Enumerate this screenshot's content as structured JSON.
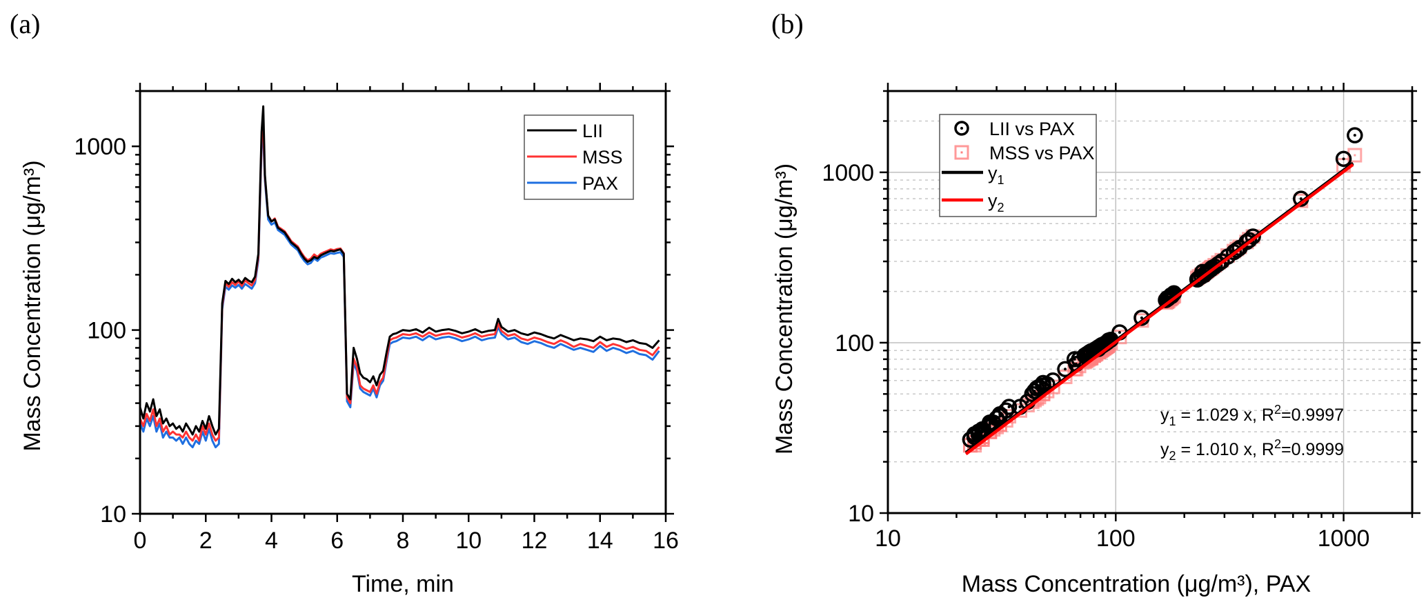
{
  "panels": {
    "a": {
      "label": "(a)"
    },
    "b": {
      "label": "(b)"
    }
  },
  "chart_data": [
    {
      "id": "a",
      "type": "line",
      "title": "",
      "xlabel": "Time, min",
      "ylabel": "Mass Concentration (μg/m³)",
      "xscale": "linear",
      "yscale": "log",
      "xlim": [
        0,
        16
      ],
      "ylim": [
        10,
        2000
      ],
      "xticks": [
        0,
        2,
        4,
        6,
        8,
        10,
        12,
        14,
        16
      ],
      "xtick_labels": [
        "0",
        "2",
        "4",
        "6",
        "8",
        "10",
        "12",
        "14",
        "16"
      ],
      "yticks": [
        10,
        100,
        1000
      ],
      "ytick_labels": [
        "10",
        "100",
        "1000"
      ],
      "grid": false,
      "legend_position": "top-right",
      "x": [
        0.0,
        0.1,
        0.2,
        0.3,
        0.4,
        0.5,
        0.6,
        0.7,
        0.8,
        0.9,
        1.0,
        1.1,
        1.2,
        1.3,
        1.4,
        1.5,
        1.6,
        1.7,
        1.8,
        1.9,
        2.0,
        2.1,
        2.2,
        2.3,
        2.4,
        2.5,
        2.6,
        2.7,
        2.8,
        2.9,
        3.0,
        3.1,
        3.2,
        3.3,
        3.4,
        3.5,
        3.6,
        3.7,
        3.75,
        3.8,
        3.9,
        4.0,
        4.1,
        4.2,
        4.3,
        4.4,
        4.5,
        4.6,
        4.7,
        4.8,
        4.9,
        5.0,
        5.1,
        5.2,
        5.3,
        5.4,
        5.5,
        5.6,
        5.7,
        5.8,
        5.9,
        6.0,
        6.1,
        6.2,
        6.3,
        6.4,
        6.5,
        6.6,
        6.7,
        6.8,
        6.9,
        7.0,
        7.1,
        7.2,
        7.3,
        7.4,
        7.5,
        7.6,
        7.7,
        7.8,
        7.9,
        8.0,
        8.2,
        8.4,
        8.6,
        8.8,
        9.0,
        9.2,
        9.4,
        9.6,
        9.8,
        10.0,
        10.2,
        10.4,
        10.6,
        10.8,
        10.9,
        11.0,
        11.2,
        11.4,
        11.6,
        11.8,
        12.0,
        12.2,
        12.4,
        12.6,
        12.8,
        13.0,
        13.2,
        13.4,
        13.6,
        13.8,
        14.0,
        14.2,
        14.4,
        14.6,
        14.8,
        15.0,
        15.2,
        15.4,
        15.6,
        15.8,
        16.0
      ],
      "series": [
        {
          "name": "LII",
          "color": "#000000",
          "values": [
            38,
            33,
            40,
            36,
            42,
            34,
            37,
            31,
            33,
            30,
            31,
            29,
            30,
            28,
            31,
            29,
            27,
            30,
            28,
            32,
            29,
            34,
            30,
            27,
            29,
            140,
            185,
            178,
            190,
            182,
            188,
            180,
            192,
            186,
            182,
            195,
            260,
            1200,
            1650,
            700,
            420,
            390,
            400,
            360,
            350,
            340,
            320,
            300,
            290,
            280,
            260,
            245,
            235,
            240,
            250,
            245,
            255,
            260,
            265,
            270,
            268,
            272,
            275,
            260,
            45,
            42,
            80,
            70,
            58,
            55,
            54,
            52,
            56,
            50,
            57,
            60,
            75,
            92,
            95,
            96,
            98,
            100,
            99,
            101,
            97,
            103,
            98,
            100,
            101,
            99,
            96,
            98,
            101,
            97,
            99,
            100,
            115,
            104,
            98,
            100,
            96,
            94,
            97,
            95,
            92,
            90,
            94,
            91,
            88,
            90,
            89,
            87,
            92,
            88,
            90,
            89,
            86,
            88,
            85,
            84,
            80,
            88
          ]
        },
        {
          "name": "MSS",
          "color": "#ff3333",
          "values": [
            33,
            30,
            35,
            32,
            37,
            30,
            33,
            28,
            30,
            27,
            28,
            27,
            27,
            26,
            28,
            26,
            25,
            27,
            25,
            30,
            27,
            31,
            27,
            25,
            26,
            135,
            180,
            172,
            182,
            176,
            184,
            174,
            186,
            180,
            175,
            188,
            250,
            1100,
            1260,
            680,
            420,
            390,
            405,
            365,
            355,
            345,
            325,
            305,
            295,
            285,
            265,
            250,
            240,
            245,
            258,
            250,
            260,
            265,
            270,
            275,
            272,
            276,
            278,
            262,
            43,
            40,
            70,
            63,
            50,
            48,
            47,
            46,
            50,
            45,
            52,
            55,
            70,
            88,
            90,
            91,
            93,
            95,
            94,
            96,
            92,
            97,
            93,
            95,
            96,
            94,
            91,
            93,
            96,
            92,
            94,
            95,
            108,
            99,
            93,
            95,
            90,
            88,
            91,
            89,
            86,
            84,
            88,
            85,
            81,
            84,
            82,
            80,
            86,
            81,
            84,
            82,
            79,
            81,
            78,
            77,
            73,
            81
          ]
        },
        {
          "name": "PAX",
          "color": "#1f6fe0",
          "values": [
            31,
            28,
            33,
            30,
            34,
            28,
            31,
            26,
            28,
            26,
            26,
            25,
            26,
            24,
            26,
            24,
            23,
            25,
            24,
            28,
            25,
            29,
            25,
            23,
            24,
            130,
            172,
            166,
            175,
            170,
            176,
            168,
            178,
            173,
            168,
            180,
            240,
            1000,
            1120,
            650,
            400,
            375,
            385,
            350,
            340,
            330,
            310,
            292,
            282,
            272,
            252,
            238,
            228,
            232,
            245,
            238,
            248,
            252,
            257,
            262,
            260,
            263,
            265,
            250,
            41,
            38,
            66,
            60,
            48,
            46,
            45,
            44,
            48,
            43,
            50,
            53,
            67,
            84,
            86,
            87,
            89,
            91,
            90,
            92,
            88,
            93,
            89,
            91,
            92,
            90,
            87,
            89,
            92,
            88,
            90,
            91,
            104,
            95,
            89,
            91,
            86,
            84,
            87,
            85,
            82,
            80,
            84,
            81,
            78,
            80,
            78,
            76,
            82,
            77,
            80,
            78,
            75,
            77,
            74,
            73,
            69,
            77
          ]
        }
      ]
    },
    {
      "id": "b",
      "type": "scatter",
      "title": "",
      "xlabel": "Mass Concentration (μg/m³), PAX",
      "ylabel": "Mass Concentration (μg/m³)",
      "xscale": "log",
      "yscale": "log",
      "xlim": [
        10,
        2000
      ],
      "ylim": [
        10,
        3000
      ],
      "xticks": [
        10,
        100,
        1000
      ],
      "xtick_labels": [
        "10",
        "100",
        "1000"
      ],
      "yticks": [
        10,
        100,
        1000
      ],
      "ytick_labels": [
        "10",
        "100",
        "1000"
      ],
      "grid": true,
      "legend_position": "top-left",
      "series": [
        {
          "name": "LII vs PAX",
          "marker": "circle-dot",
          "color": "#000000",
          "points_from": "LII vs PAX"
        },
        {
          "name": "MSS vs PAX",
          "marker": "square-dot",
          "color": "#ff8080",
          "points_from": "MSS vs PAX"
        },
        {
          "name": "y1",
          "type": "line",
          "color": "#000000",
          "slope": 1.029,
          "x_range": [
            22,
            1100
          ]
        },
        {
          "name": "y2",
          "type": "line",
          "color": "#ff0000",
          "slope": 1.01,
          "x_range": [
            22,
            1100
          ]
        }
      ],
      "legend": [
        {
          "label": "LII vs PAX",
          "sub": ""
        },
        {
          "label": "MSS vs PAX",
          "sub": ""
        },
        {
          "label": "y",
          "sub": "1"
        },
        {
          "label": "y",
          "sub": "2"
        }
      ],
      "annotations": [
        {
          "prefix": "y",
          "sub": "1",
          "text": " = 1.029 x, R",
          "sup": "2",
          "tail": "=0.9997"
        },
        {
          "prefix": "y",
          "sub": "2",
          "text": " = 1.010 x, R",
          "sup": "2",
          "tail": "=0.9999"
        }
      ]
    }
  ]
}
